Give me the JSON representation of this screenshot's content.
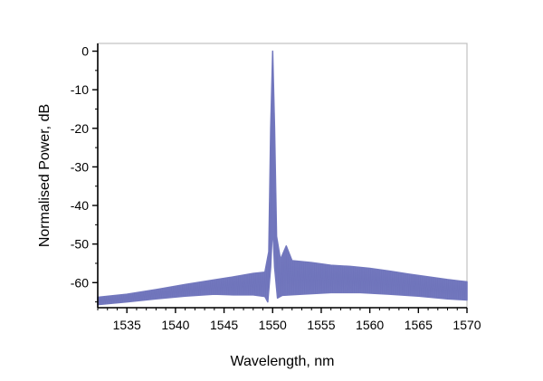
{
  "chart_data": {
    "type": "line",
    "title": "",
    "xlabel": "Wavelength, nm",
    "ylabel": "Normalised Power, dB",
    "xlim": [
      1532,
      1570
    ],
    "ylim": [
      -66.5,
      2
    ],
    "xticks": [
      1535,
      1540,
      1545,
      1550,
      1555,
      1560,
      1565,
      1570
    ],
    "yticks": [
      0,
      -10,
      -20,
      -30,
      -40,
      -50,
      -60
    ],
    "grid": false,
    "legend": "none",
    "series_color": "#7479bf",
    "series": [
      {
        "name": "",
        "envelope_upper": [
          [
            1532,
            -63.8
          ],
          [
            1535,
            -63.0
          ],
          [
            1538,
            -61.8
          ],
          [
            1541,
            -60.5
          ],
          [
            1544,
            -59.3
          ],
          [
            1546,
            -58.5
          ],
          [
            1548,
            -57.6
          ],
          [
            1549.2,
            -57.3
          ],
          [
            1549.6,
            -52.0
          ],
          [
            1549.8,
            -20.0
          ],
          [
            1550.0,
            0.0
          ],
          [
            1550.2,
            -20.0
          ],
          [
            1550.4,
            -48.0
          ],
          [
            1550.8,
            -54.0
          ],
          [
            1551.4,
            -50.5
          ],
          [
            1552,
            -54.3
          ],
          [
            1554,
            -54.8
          ],
          [
            1556,
            -55.5
          ],
          [
            1558,
            -55.8
          ],
          [
            1560,
            -56.3
          ],
          [
            1562,
            -57.0
          ],
          [
            1564,
            -57.8
          ],
          [
            1566,
            -58.5
          ],
          [
            1568,
            -59.2
          ],
          [
            1570,
            -59.8
          ]
        ],
        "envelope_lower": [
          [
            1532,
            -65.7
          ],
          [
            1535,
            -65.0
          ],
          [
            1538,
            -64.2
          ],
          [
            1541,
            -63.5
          ],
          [
            1544,
            -63.0
          ],
          [
            1546,
            -63.2
          ],
          [
            1548,
            -63.2
          ],
          [
            1549.2,
            -63.6
          ],
          [
            1549.5,
            -65.0
          ],
          [
            1549.8,
            -56.0
          ],
          [
            1550.0,
            -45.0
          ],
          [
            1550.2,
            -56.0
          ],
          [
            1550.5,
            -64.0
          ],
          [
            1551,
            -63.3
          ],
          [
            1553,
            -63.0
          ],
          [
            1556,
            -62.6
          ],
          [
            1559,
            -62.6
          ],
          [
            1562,
            -63.0
          ],
          [
            1565,
            -63.5
          ],
          [
            1568,
            -64.2
          ],
          [
            1570,
            -64.5
          ]
        ]
      }
    ]
  }
}
